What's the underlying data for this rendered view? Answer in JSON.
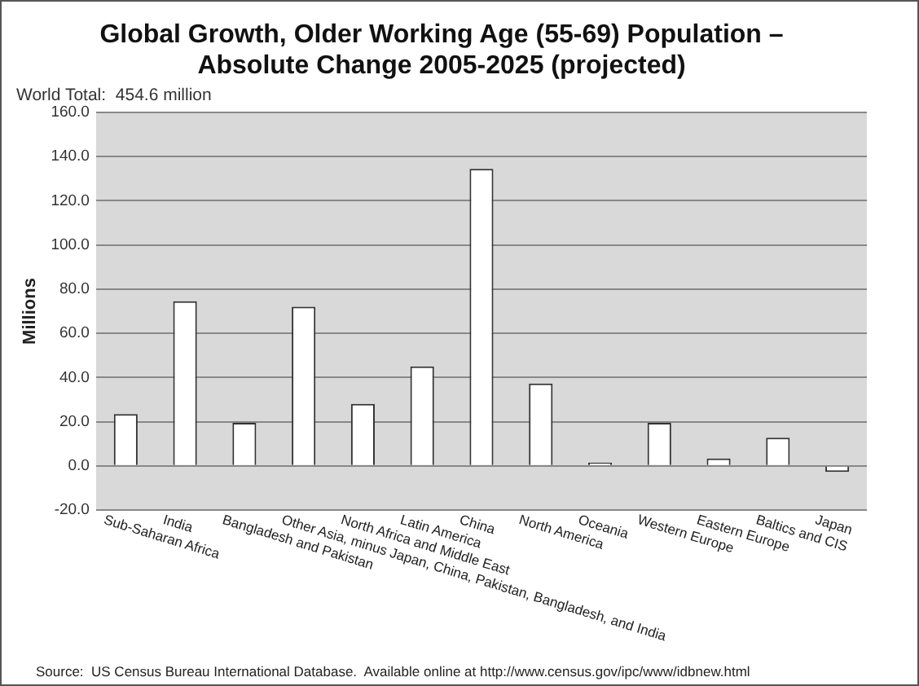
{
  "chart_data": {
    "type": "bar",
    "title": [
      "Global Growth, Older Working Age (55-69) Population –",
      "Absolute Change 2005-2025 (projected)"
    ],
    "subtitle": "World Total:  454.6 million",
    "ylabel": "Millions",
    "categories": [
      "Sub-Saharan Africa",
      "India",
      "Bangladesh and Pakistan",
      "Other Asia, minus Japan, China, Pakistan, Bangladesh, and India",
      "North Africa and Middle East",
      "Latin America",
      "China",
      "North America",
      "Oceania",
      "Western Europe",
      "Eastern Europe",
      "Baltics and CIS",
      "Japan"
    ],
    "values": [
      23.4,
      74.5,
      19.5,
      72,
      28,
      45,
      134.5,
      37.3,
      1.5,
      19.5,
      3.3,
      12.7,
      -2.8
    ],
    "color": "#ffffff",
    "ylim": [
      -20,
      160
    ],
    "yticks": [
      {
        "value": -20,
        "label": "-20.0"
      },
      {
        "value": 0,
        "label": "0.0"
      },
      {
        "value": 20,
        "label": "20.0"
      },
      {
        "value": 40,
        "label": "40.0"
      },
      {
        "value": 60,
        "label": "60.0"
      },
      {
        "value": 80,
        "label": "80.0"
      },
      {
        "value": 100,
        "label": "100.0"
      },
      {
        "value": 120,
        "label": "120.0"
      },
      {
        "value": 140,
        "label": "140.0"
      },
      {
        "value": 160,
        "label": "160.0"
      }
    ],
    "grid": "y",
    "legend": false,
    "annotations": [
      "Source:  US Census Bureau International Database.  Available online at http://www.census.gov/ipc/www/idbnew.html"
    ]
  }
}
